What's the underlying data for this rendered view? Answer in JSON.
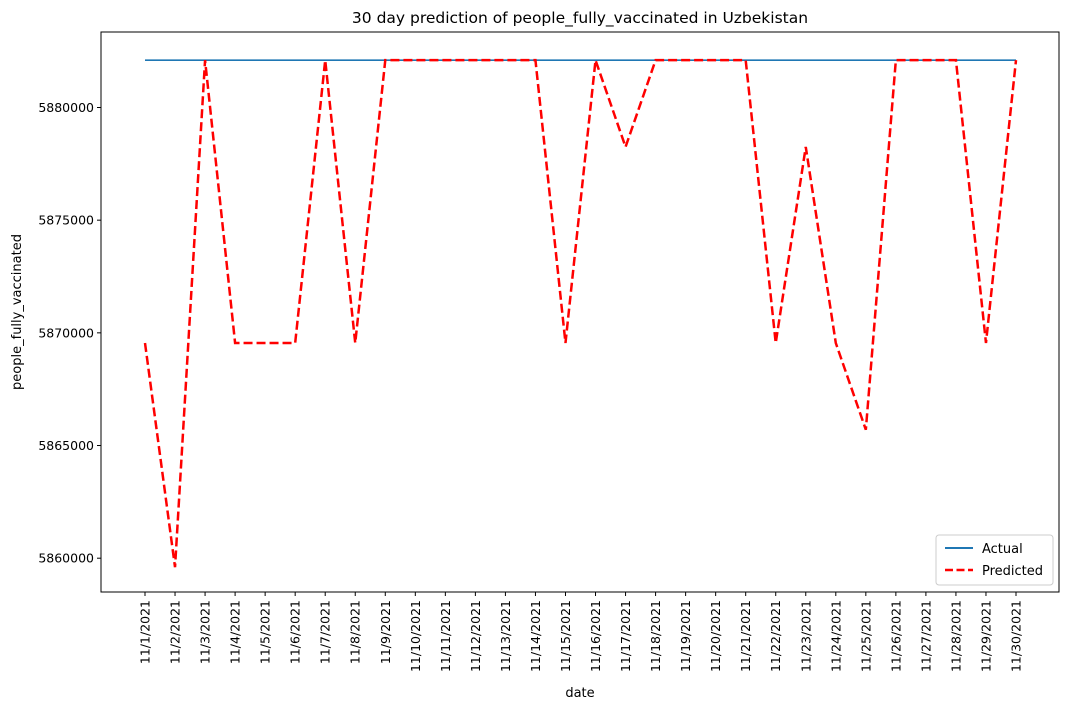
{
  "chart_data": {
    "type": "line",
    "title": "30 day prediction of people_fully_vaccinated in Uzbekistan",
    "xlabel": "date",
    "ylabel": "people_fully_vaccinated",
    "categories": [
      "11/1/2021",
      "11/2/2021",
      "11/3/2021",
      "11/4/2021",
      "11/5/2021",
      "11/6/2021",
      "11/7/2021",
      "11/8/2021",
      "11/9/2021",
      "11/10/2021",
      "11/11/2021",
      "11/12/2021",
      "11/13/2021",
      "11/14/2021",
      "11/15/2021",
      "11/16/2021",
      "11/17/2021",
      "11/18/2021",
      "11/19/2021",
      "11/20/2021",
      "11/21/2021",
      "11/22/2021",
      "11/23/2021",
      "11/24/2021",
      "11/25/2021",
      "11/26/2021",
      "11/27/2021",
      "11/28/2021",
      "11/29/2021",
      "11/30/2021"
    ],
    "yticks": [
      5860000,
      5865000,
      5870000,
      5875000,
      5880000
    ],
    "ylim": [
      5858500,
      5883350
    ],
    "series": [
      {
        "name": "Actual",
        "color": "#1f77b4",
        "style": "solid",
        "values": [
          5882100,
          5882100,
          5882100,
          5882100,
          5882100,
          5882100,
          5882100,
          5882100,
          5882100,
          5882100,
          5882100,
          5882100,
          5882100,
          5882100,
          5882100,
          5882100,
          5882100,
          5882100,
          5882100,
          5882100,
          5882100,
          5882100,
          5882100,
          5882100,
          5882100,
          5882100,
          5882100,
          5882100,
          5882100,
          5882100
        ]
      },
      {
        "name": "Predicted",
        "color": "#ff0000",
        "style": "dashed",
        "values": [
          5869550,
          5859600,
          5882100,
          5869550,
          5869550,
          5869550,
          5882100,
          5869550,
          5882100,
          5882100,
          5882100,
          5882100,
          5882100,
          5882100,
          5869550,
          5882100,
          5878250,
          5882100,
          5882100,
          5882100,
          5882100,
          5869550,
          5878250,
          5869550,
          5865700,
          5882100,
          5882100,
          5882100,
          5869550,
          5882100
        ]
      }
    ],
    "legend_position": "lower-right",
    "grid": false
  }
}
